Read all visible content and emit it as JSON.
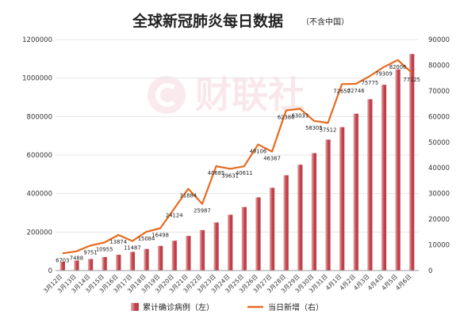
{
  "colors": {
    "bar": "#c0404a",
    "bar_light": "#e8b4b4",
    "line": "#e66b1f",
    "grid": "#e4e4e4",
    "watermark": "#d9566b"
  },
  "watermark": {
    "text": "财联社"
  },
  "chart_data": {
    "type": "bar+line",
    "title": "全球新冠肺炎每日数据",
    "title_note": "（不含中国）",
    "categories": [
      "3月12日",
      "3月13日",
      "3月14日",
      "3月15日",
      "3月16日",
      "3月17日",
      "3月18日",
      "3月19日",
      "3月20日",
      "3月21日",
      "3月22日",
      "3月23日",
      "3月24日",
      "3月25日",
      "3月26日",
      "3月27日",
      "3月28日",
      "3月29日",
      "3月30日",
      "3月31日",
      "4月1日",
      "4月2日",
      "4月3日",
      "4月4日",
      "4月5日",
      "4月6日"
    ],
    "series": [
      {
        "name": "累计确诊病例（左）",
        "type": "bar",
        "axis": "left",
        "values": [
          45000,
          52000,
          60000,
          70000,
          82000,
          97000,
          112000,
          128000,
          155000,
          180000,
          210000,
          250000,
          290000,
          330000,
          380000,
          430000,
          495000,
          550000,
          610000,
          680000,
          745000,
          815000,
          890000,
          965000,
          1045000,
          1125000
        ]
      },
      {
        "name": "当日新增（右）",
        "type": "line",
        "axis": "right",
        "values": [
          6703,
          7488,
          9751,
          10955,
          13874,
          11487,
          15084,
          16498,
          24124,
          31884,
          25987,
          40685,
          39631,
          40611,
          49106,
          46367,
          62380,
          63033,
          58305,
          57512,
          72650,
          72746,
          75775,
          79309,
          82006,
          77125
        ],
        "labels": [
          "6703",
          "7488",
          "9751",
          "10955",
          "13874",
          "11487",
          "15084",
          "16498",
          "24124",
          "31884",
          "25987",
          "40685",
          "39631",
          "40611",
          "49106",
          "46367",
          "62380",
          "63033",
          "58305",
          "57512",
          "72650",
          "72746",
          "75775",
          "79309",
          "82006",
          "77125"
        ]
      }
    ],
    "y_left": {
      "ylim": [
        0,
        1200000
      ],
      "ticks": [
        0,
        200000,
        400000,
        600000,
        800000,
        1000000,
        1200000
      ]
    },
    "y_right": {
      "ylim": [
        0,
        90000
      ],
      "ticks": [
        0,
        10000,
        20000,
        30000,
        40000,
        50000,
        60000,
        70000,
        80000,
        90000
      ]
    },
    "grid": true,
    "legend": "bottom"
  }
}
